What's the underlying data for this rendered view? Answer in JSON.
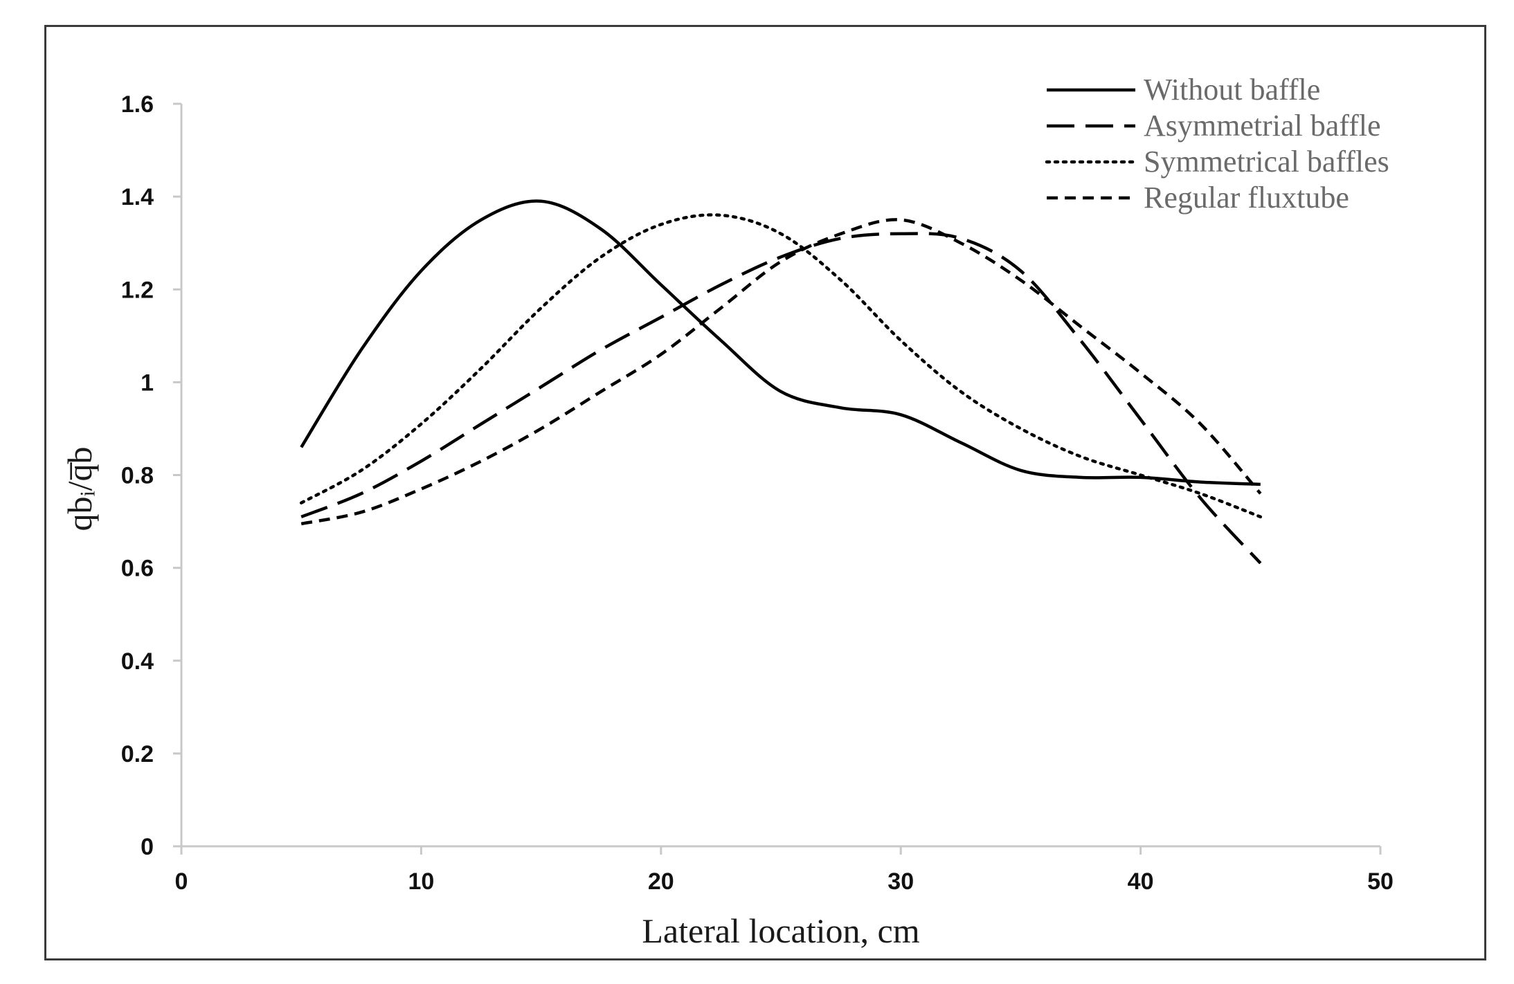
{
  "chart_data": {
    "type": "line",
    "title": "",
    "xlabel": "Lateral location, cm",
    "ylabel": "qbᵢ/q̅b",
    "xlim": [
      0,
      50
    ],
    "ylim": [
      0,
      1.6
    ],
    "xticks": [
      0,
      10,
      20,
      30,
      40,
      50
    ],
    "yticks": [
      0,
      0.2,
      0.4,
      0.6,
      0.8,
      1,
      1.2,
      1.4,
      1.6
    ],
    "ytick_labels": [
      "0",
      "0.2",
      "0.4",
      "0.6",
      "0.8",
      "1",
      "1.2",
      "1.4",
      "1.6"
    ],
    "grid": false,
    "legend_position": "top-right",
    "series": [
      {
        "name": "Without baffle",
        "style": "solid",
        "x": [
          5,
          7.5,
          10,
          12.5,
          15,
          17.5,
          20,
          22.5,
          25,
          27.5,
          30,
          32.5,
          35,
          37.5,
          40,
          42.5,
          45
        ],
        "y": [
          0.86,
          1.07,
          1.24,
          1.35,
          1.39,
          1.33,
          1.21,
          1.09,
          0.98,
          0.945,
          0.93,
          0.87,
          0.81,
          0.795,
          0.795,
          0.785,
          0.78
        ]
      },
      {
        "name": "Asymmetrial baffle",
        "style": "longdash",
        "x": [
          5,
          7.5,
          10,
          12.5,
          15,
          17.5,
          20,
          22.5,
          25,
          27.5,
          30,
          32.5,
          35,
          37.5,
          40,
          42.5,
          45
        ],
        "y": [
          0.71,
          0.76,
          0.83,
          0.91,
          0.99,
          1.07,
          1.14,
          1.21,
          1.27,
          1.31,
          1.32,
          1.31,
          1.24,
          1.09,
          0.92,
          0.75,
          0.61
        ]
      },
      {
        "name": "Symmetrical baffles",
        "style": "dotted",
        "x": [
          5,
          7.5,
          10,
          12.5,
          15,
          17.5,
          20,
          22.5,
          25,
          27.5,
          30,
          32.5,
          35,
          37.5,
          40,
          42.5,
          45
        ],
        "y": [
          0.74,
          0.81,
          0.91,
          1.03,
          1.16,
          1.27,
          1.34,
          1.36,
          1.32,
          1.22,
          1.09,
          0.98,
          0.9,
          0.84,
          0.8,
          0.76,
          0.71
        ]
      },
      {
        "name": "Regular fluxtube",
        "style": "dashed",
        "x": [
          5,
          7.5,
          10,
          12.5,
          15,
          17.5,
          20,
          22.5,
          25,
          27.5,
          30,
          32.5,
          35,
          37.5,
          40,
          42.5,
          45
        ],
        "y": [
          0.695,
          0.72,
          0.77,
          0.83,
          0.9,
          0.98,
          1.06,
          1.16,
          1.26,
          1.32,
          1.35,
          1.3,
          1.22,
          1.12,
          1.02,
          0.91,
          0.76
        ]
      }
    ]
  }
}
